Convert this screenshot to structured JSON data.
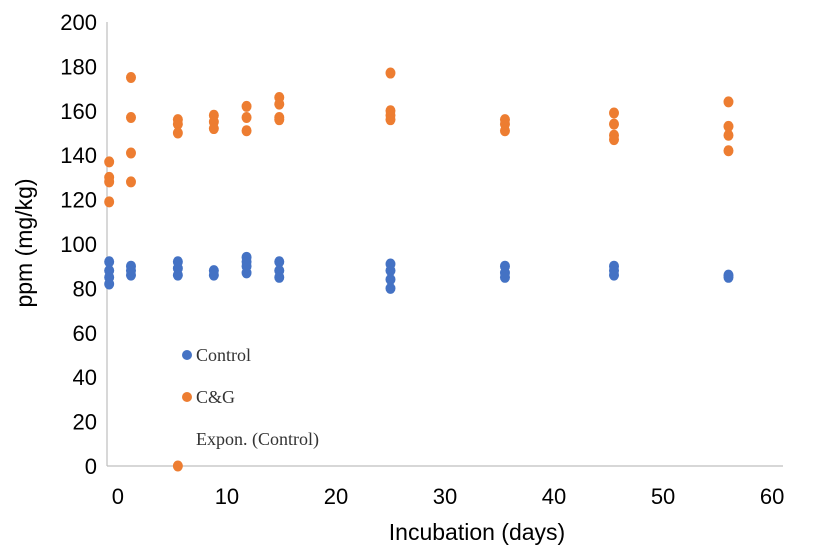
{
  "chart_data": {
    "type": "scatter",
    "xlabel": "Incubation (days)",
    "ylabel": "ppm (mg/kg)",
    "xlim": [
      -1,
      61
    ],
    "ylim": [
      0,
      200
    ],
    "x_ticks": [
      "0",
      "10",
      "20",
      "30",
      "40",
      "50",
      "60"
    ],
    "y_ticks": [
      "0",
      "20",
      "40",
      "60",
      "80",
      "100",
      "120",
      "140",
      "160",
      "180",
      "200"
    ],
    "grid": false,
    "legend_position": "left-inside",
    "series": [
      {
        "name": "Control",
        "color": "#4472C4",
        "points": [
          [
            -0.8,
            92
          ],
          [
            -0.8,
            88
          ],
          [
            -0.8,
            85
          ],
          [
            -0.8,
            82
          ],
          [
            1.2,
            90
          ],
          [
            1.2,
            88
          ],
          [
            1.2,
            86
          ],
          [
            5.5,
            92
          ],
          [
            5.5,
            89
          ],
          [
            5.5,
            86
          ],
          [
            8.8,
            88
          ],
          [
            8.8,
            86
          ],
          [
            11.8,
            94
          ],
          [
            11.8,
            92
          ],
          [
            11.8,
            90
          ],
          [
            11.8,
            87
          ],
          [
            14.8,
            92
          ],
          [
            14.8,
            88
          ],
          [
            14.8,
            85
          ],
          [
            25,
            91
          ],
          [
            25,
            88
          ],
          [
            25,
            84
          ],
          [
            25,
            80
          ],
          [
            35.5,
            90
          ],
          [
            35.5,
            87
          ],
          [
            35.5,
            85
          ],
          [
            45.5,
            90
          ],
          [
            45.5,
            88
          ],
          [
            45.5,
            86
          ],
          [
            56,
            86
          ],
          [
            56,
            85
          ]
        ]
      },
      {
        "name": "C&G",
        "color": "#ED7D31",
        "points": [
          [
            -0.8,
            137
          ],
          [
            -0.8,
            130
          ],
          [
            -0.8,
            128
          ],
          [
            -0.8,
            119
          ],
          [
            1.2,
            175
          ],
          [
            1.2,
            157
          ],
          [
            1.2,
            141
          ],
          [
            1.2,
            128
          ],
          [
            5.5,
            0
          ],
          [
            5.5,
            156
          ],
          [
            5.5,
            154
          ],
          [
            5.5,
            150
          ],
          [
            8.8,
            158
          ],
          [
            8.8,
            155
          ],
          [
            8.8,
            152
          ],
          [
            11.8,
            162
          ],
          [
            11.8,
            157
          ],
          [
            11.8,
            151
          ],
          [
            14.8,
            166
          ],
          [
            14.8,
            163
          ],
          [
            14.8,
            157
          ],
          [
            14.8,
            156
          ],
          [
            25,
            177
          ],
          [
            25,
            160
          ],
          [
            25,
            158
          ],
          [
            25,
            156
          ],
          [
            35.5,
            156
          ],
          [
            35.5,
            154
          ],
          [
            35.5,
            151
          ],
          [
            45.5,
            159
          ],
          [
            45.5,
            154
          ],
          [
            45.5,
            149
          ],
          [
            45.5,
            147
          ],
          [
            56,
            164
          ],
          [
            56,
            153
          ],
          [
            56,
            149
          ],
          [
            56,
            142
          ]
        ]
      }
    ],
    "legend": {
      "items": [
        {
          "label": "Control",
          "color": "#4472C4",
          "marker": true
        },
        {
          "label": "C&G",
          "color": "#ED7D31",
          "marker": true
        },
        {
          "label": "Expon. (Control)",
          "color": "#4472C4",
          "marker": false
        }
      ]
    }
  }
}
